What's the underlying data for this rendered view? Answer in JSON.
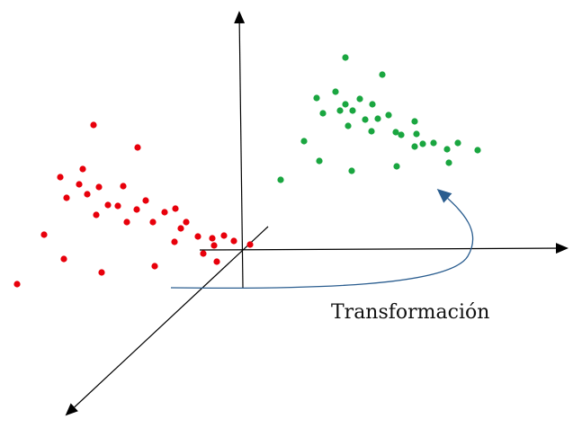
{
  "caption": "Transformación",
  "colors": {
    "axis": "#000000",
    "arrow": "#2a5d8f",
    "red_points": "#e8000b",
    "green_points": "#1aa640"
  },
  "point_sets": {
    "red": {
      "count": 34
    },
    "green": {
      "count": 31
    }
  }
}
